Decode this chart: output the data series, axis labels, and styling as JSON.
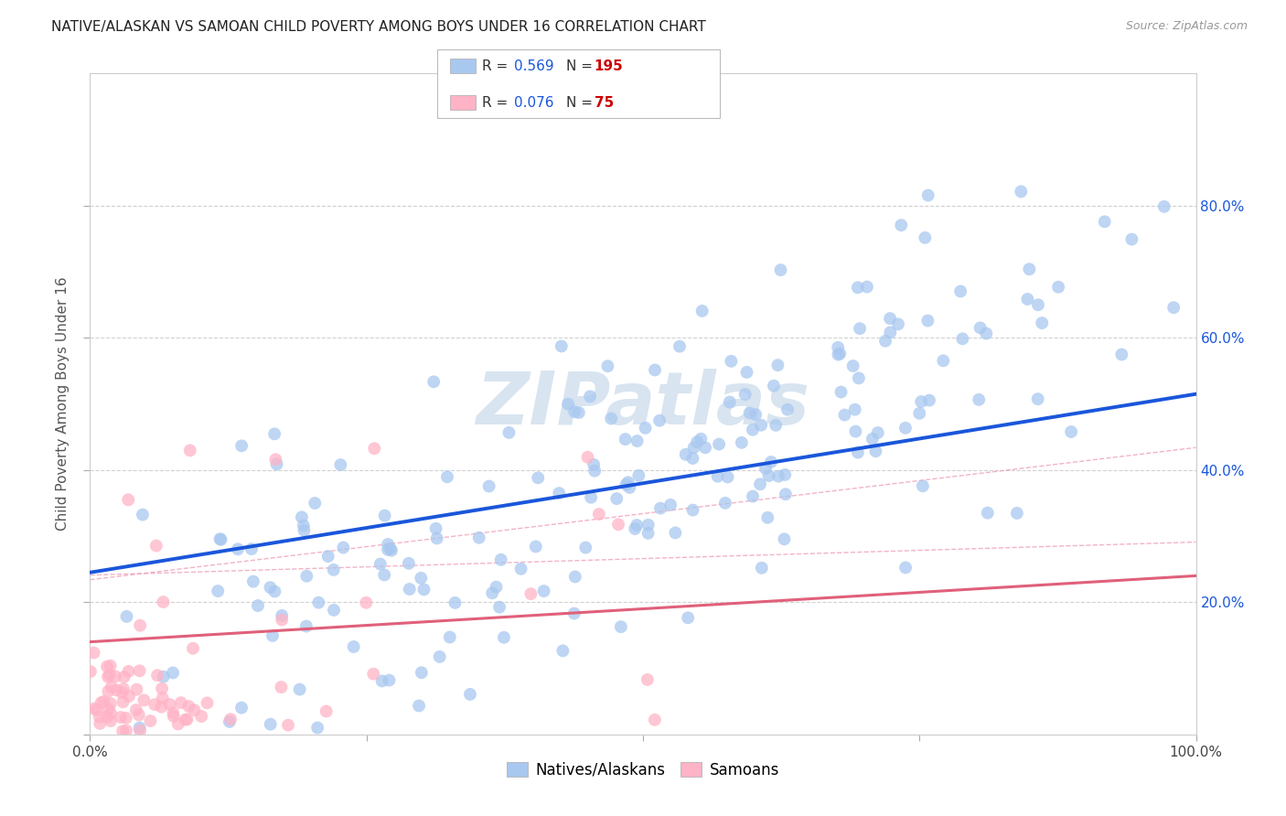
{
  "title": "NATIVE/ALASKAN VS SAMOAN CHILD POVERTY AMONG BOYS UNDER 16 CORRELATION CHART",
  "source": "Source: ZipAtlas.com",
  "ylabel": "Child Poverty Among Boys Under 16",
  "xlim": [
    0,
    1.0
  ],
  "ylim": [
    0,
    1.0
  ],
  "blue_R": 0.569,
  "blue_N": 195,
  "pink_R": 0.076,
  "pink_N": 75,
  "blue_color": "#a8c8f0",
  "blue_line_color": "#1a56db",
  "pink_color": "#ffb3c6",
  "pink_line_color": "#e0607a",
  "pink_dash_color": "#f0a0b8",
  "legend_R_color": "#1a56db",
  "legend_N_color": "#cc0000",
  "watermark": "ZIPatlas",
  "watermark_color": "#d8e4f0",
  "background_color": "#ffffff",
  "grid_color": "#cccccc",
  "title_fontsize": 11
}
